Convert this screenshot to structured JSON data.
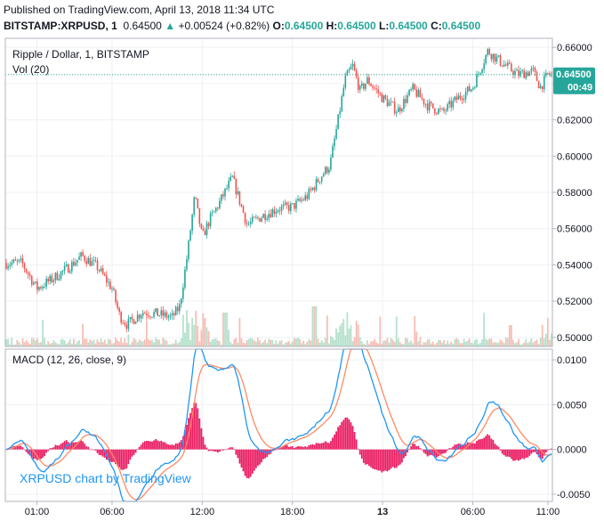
{
  "header": {
    "published": "Published on TradingView.com, April 13, 2018 11:34 UTC",
    "symbol": "BITSTAMP:XRPUSD, 1",
    "price": "0.64500",
    "change": "+0.00524 (+0.82%)",
    "ohlc_o_label": "O:",
    "ohlc_o": "0.64500",
    "ohlc_h_label": "H:",
    "ohlc_h": "0.64500",
    "ohlc_l_label": "L:",
    "ohlc_l": "0.64500",
    "ohlc_c_label": "C:",
    "ohlc_c": "0.64500"
  },
  "watermark": "XRPUSD chart by TradingView",
  "colors": {
    "up": "#26a69a",
    "down": "#ef5350",
    "macd_line": "#2196f3",
    "signal_line": "#ff8a65",
    "histogram": "#e91e63",
    "price_badge": "#26a69a",
    "watermark": "#2196f3"
  },
  "chart_data": [
    {
      "type": "candlestick",
      "title": "Ripple / Dollar, 1, BITSTAMP",
      "interval_minutes": 1,
      "last_price": 0.645,
      "last_price_label": "0.64500",
      "countdown": "00:49",
      "ylim": [
        0.495,
        0.665
      ],
      "y_ticks": [
        "0.66000",
        "0.64000",
        "0.62000",
        "0.60000",
        "0.58000",
        "0.56000",
        "0.54000",
        "0.52000",
        "0.50000"
      ],
      "x_ticks": [
        "01:00",
        "06:00",
        "12:00",
        "18:00",
        "13",
        "06:00",
        "11:00"
      ],
      "grid": true,
      "price_path": {
        "x_hour": [
          0,
          1,
          2,
          3,
          4,
          5,
          6,
          6.5,
          7,
          8,
          9,
          10,
          10.5,
          11,
          11.5,
          12,
          12.5,
          13,
          14,
          15,
          16,
          17,
          18,
          19,
          20,
          20.5,
          21,
          21.5,
          22,
          22.5,
          23,
          24,
          25,
          26,
          27,
          28,
          29,
          30,
          31,
          32,
          33,
          34,
          34.5,
          35
        ],
        "price": [
          0.541,
          0.527,
          0.532,
          0.538,
          0.545,
          0.539,
          0.527,
          0.512,
          0.507,
          0.514,
          0.513,
          0.511,
          0.517,
          0.545,
          0.578,
          0.555,
          0.565,
          0.572,
          0.588,
          0.562,
          0.567,
          0.571,
          0.572,
          0.578,
          0.59,
          0.595,
          0.618,
          0.642,
          0.65,
          0.636,
          0.642,
          0.632,
          0.625,
          0.637,
          0.628,
          0.624,
          0.632,
          0.638,
          0.658,
          0.651,
          0.645,
          0.647,
          0.638,
          0.645
        ]
      }
    },
    {
      "type": "bar",
      "title": "Vol (20)"
    },
    {
      "type": "line",
      "title": "MACD (12, 26, close, 9)",
      "ylim": [
        -0.0058,
        0.0112
      ],
      "y_ticks": [
        "0.0100",
        "0.0050",
        "0.0000",
        "-0.0050"
      ]
    }
  ]
}
